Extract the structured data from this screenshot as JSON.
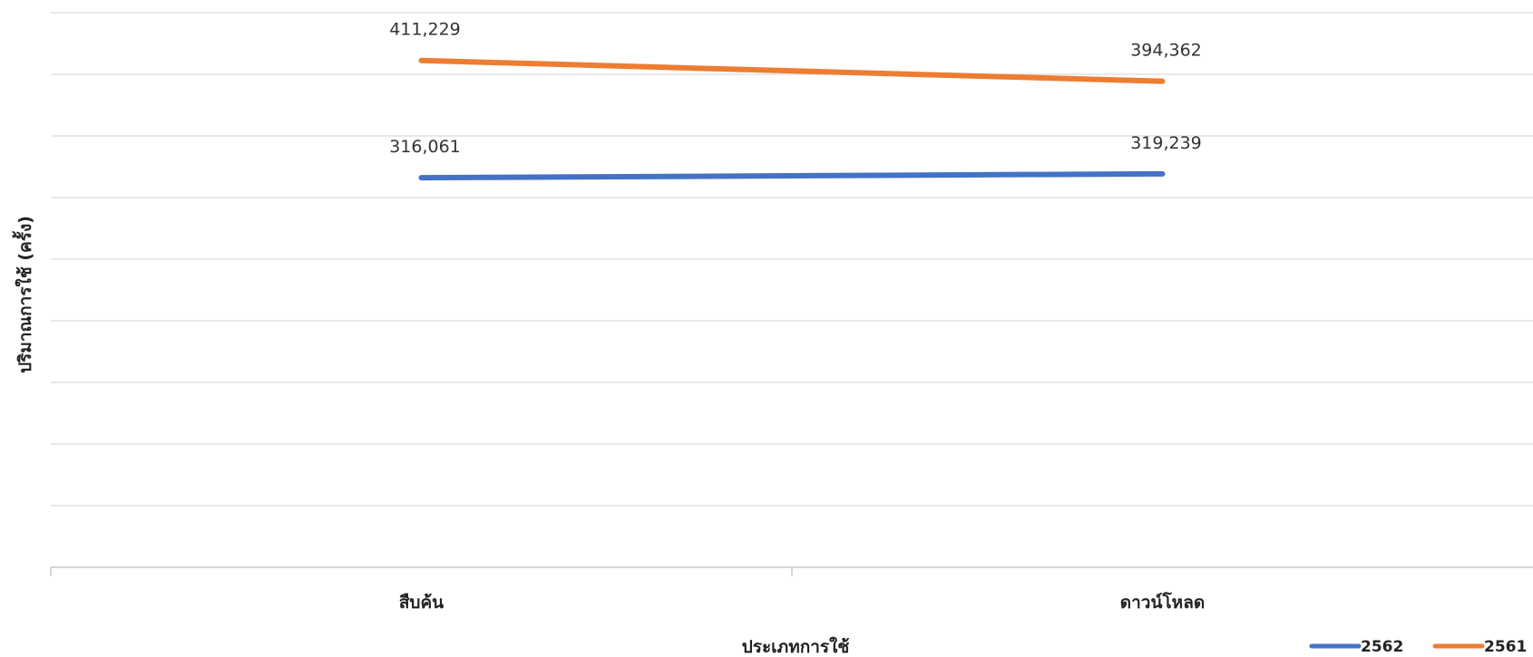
{
  "chart_data": {
    "type": "line",
    "categories": [
      "สืบค้น",
      "ดาวน์โหลด"
    ],
    "series": [
      {
        "name": "2562",
        "values": [
          316061,
          319239
        ],
        "labels": [
          "316,061",
          "319,239"
        ],
        "color": "#4472C4"
      },
      {
        "name": "2561",
        "values": [
          411229,
          394362
        ],
        "labels": [
          "411,229",
          "394,362"
        ],
        "color": "#ED7D31"
      }
    ],
    "xlabel": "ประเภทการใช้",
    "ylabel": "ปริมาณการใช้ (ครั้ง)",
    "ylim": [
      0,
      450000
    ],
    "gridlines": true,
    "legend_position": "bottom-right",
    "gridline_color": "#D9D9D9"
  }
}
